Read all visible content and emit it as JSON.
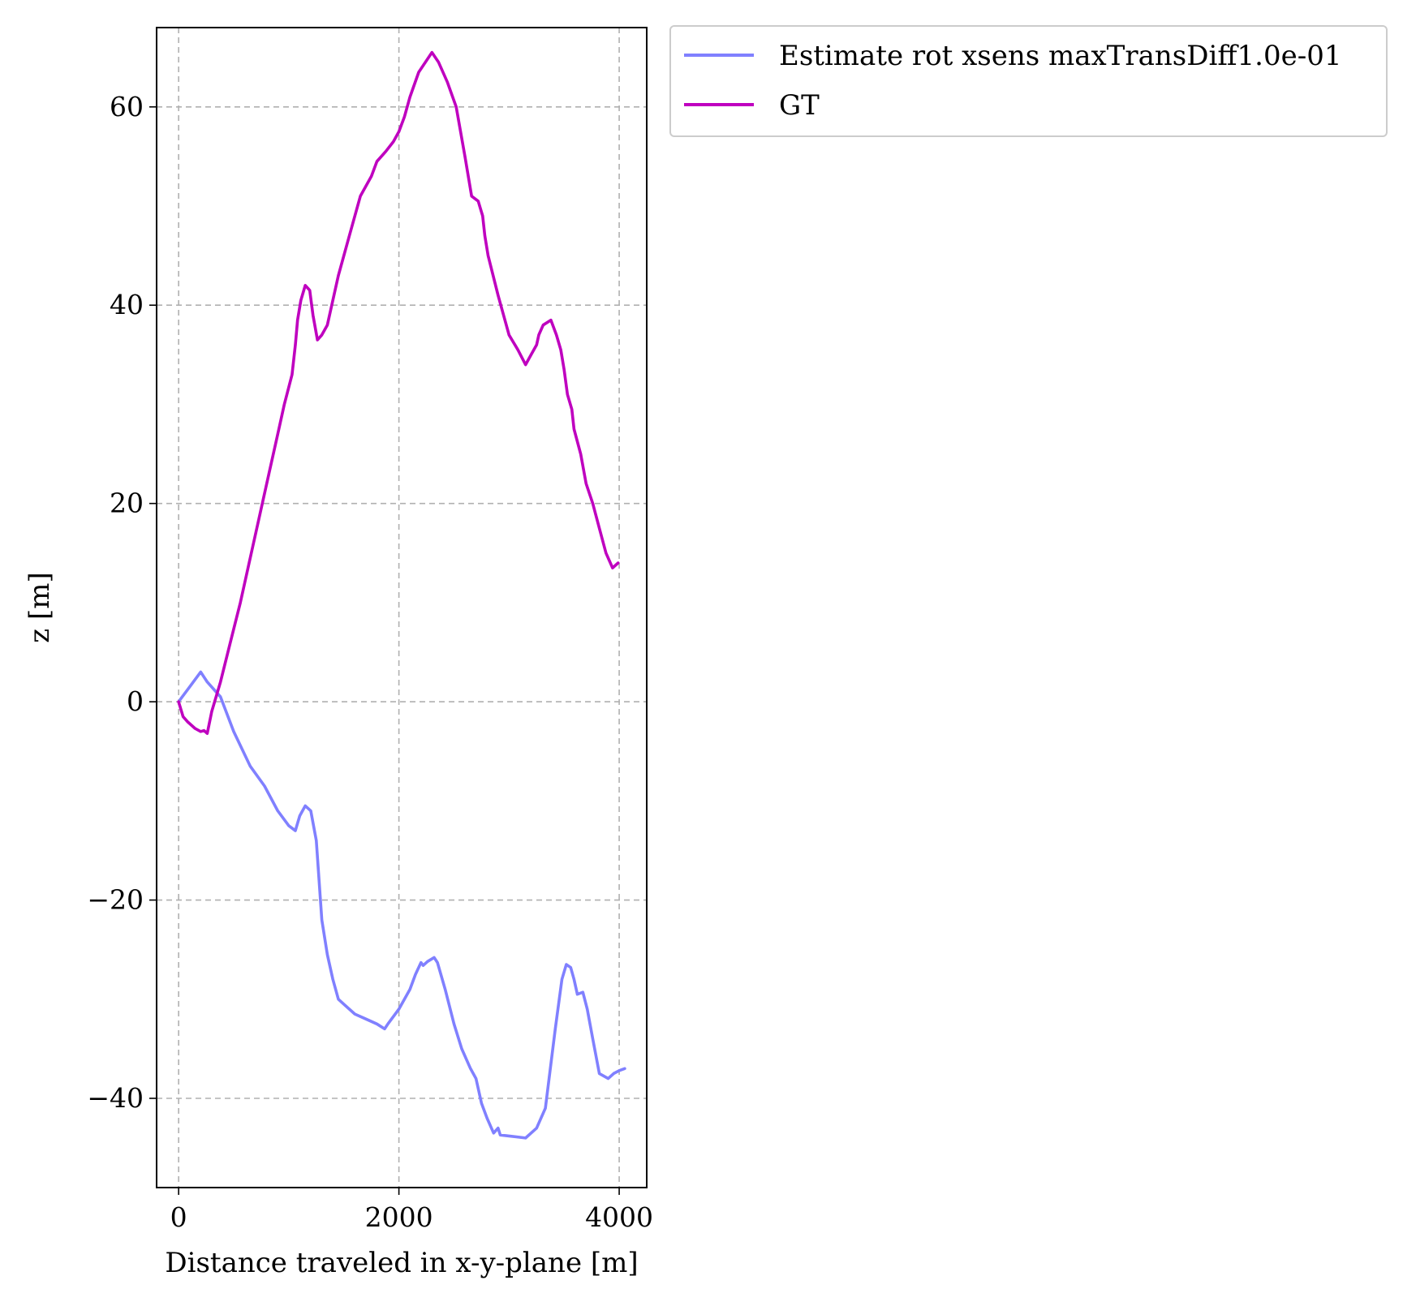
{
  "chart_data": {
    "type": "line",
    "title": "",
    "xlabel": "Distance traveled in x-y-plane [m]",
    "ylabel": "z [m]",
    "xlim": [
      -200,
      4250
    ],
    "ylim": [
      -49,
      68
    ],
    "grid": true,
    "legend_position": "outside-top-right",
    "x_ticks": [
      0,
      2000,
      4000
    ],
    "x_tick_labels": [
      "0",
      "2000",
      "4000"
    ],
    "y_ticks": [
      -40,
      -20,
      0,
      20,
      40,
      60
    ],
    "y_tick_labels": [
      "−40",
      "−20",
      "0",
      "20",
      "40",
      "60"
    ],
    "series": [
      {
        "name": "Estimate rot xsens maxTransDiff1.0e-01",
        "color": "#8080ff",
        "x": [
          0,
          100,
          200,
          260,
          380,
          500,
          650,
          780,
          900,
          1000,
          1060,
          1100,
          1150,
          1200,
          1250,
          1300,
          1350,
          1400,
          1450,
          1500,
          1600,
          1700,
          1800,
          1870,
          1900,
          2000,
          2100,
          2150,
          2200,
          2220,
          2260,
          2320,
          2350,
          2420,
          2500,
          2570,
          2650,
          2700,
          2750,
          2800,
          2860,
          2900,
          2920,
          3000,
          3150,
          3250,
          3330,
          3420,
          3480,
          3520,
          3560,
          3590,
          3620,
          3670,
          3710,
          3760,
          3820,
          3900,
          3950,
          4000,
          4050
        ],
        "y": [
          0,
          1.5,
          3.0,
          2.0,
          0.5,
          -3.0,
          -6.5,
          -8.5,
          -11,
          -12.5,
          -13,
          -11.5,
          -10.5,
          -11,
          -14,
          -22,
          -25.5,
          -28,
          -30,
          -30.5,
          -31.5,
          -32,
          -32.5,
          -33,
          -32.5,
          -31,
          -29,
          -27.5,
          -26.3,
          -26.6,
          -26.2,
          -25.8,
          -26.3,
          -29,
          -32.5,
          -35,
          -37,
          -38,
          -40.5,
          -42,
          -43.5,
          -43,
          -43.7,
          -43.8,
          -44,
          -43,
          -41,
          -33,
          -28,
          -26.5,
          -26.8,
          -28,
          -29.5,
          -29.3,
          -31,
          -34,
          -37.5,
          -38,
          -37.5,
          -37.2,
          -37
        ]
      },
      {
        "name": "GT",
        "color": "#bf00bf",
        "x": [
          0,
          40,
          80,
          150,
          200,
          230,
          260,
          300,
          380,
          470,
          560,
          640,
          730,
          820,
          900,
          960,
          1030,
          1060,
          1080,
          1110,
          1150,
          1190,
          1220,
          1260,
          1300,
          1350,
          1400,
          1450,
          1550,
          1650,
          1750,
          1800,
          1880,
          1950,
          2000,
          2050,
          2100,
          2180,
          2240,
          2300,
          2360,
          2440,
          2520,
          2600,
          2660,
          2720,
          2760,
          2780,
          2810,
          2900,
          3000,
          3080,
          3150,
          3200,
          3250,
          3270,
          3310,
          3380,
          3430,
          3470,
          3500,
          3530,
          3570,
          3590,
          3650,
          3700,
          3760,
          3820,
          3880,
          3940,
          3990
        ],
        "y": [
          0,
          -1.5,
          -2.0,
          -2.7,
          -3.0,
          -2.9,
          -3.2,
          -1.0,
          2.0,
          6.0,
          10.0,
          14.0,
          18.5,
          23.0,
          27.0,
          30.0,
          33.0,
          36.0,
          38.5,
          40.5,
          42.0,
          41.5,
          39.0,
          36.5,
          37.0,
          38.0,
          40.5,
          43.0,
          47.0,
          51.0,
          53.0,
          54.5,
          55.5,
          56.5,
          57.5,
          59.0,
          61.0,
          63.5,
          64.5,
          65.5,
          64.5,
          62.5,
          60.0,
          55.0,
          51.0,
          50.5,
          49.0,
          47.0,
          45.0,
          41.0,
          37.0,
          35.5,
          34.0,
          35.0,
          36.0,
          37.0,
          38.0,
          38.5,
          37.0,
          35.5,
          33.5,
          31.0,
          29.5,
          27.5,
          25.0,
          22.0,
          20.0,
          17.5,
          15.0,
          13.5,
          14.0
        ]
      }
    ]
  }
}
